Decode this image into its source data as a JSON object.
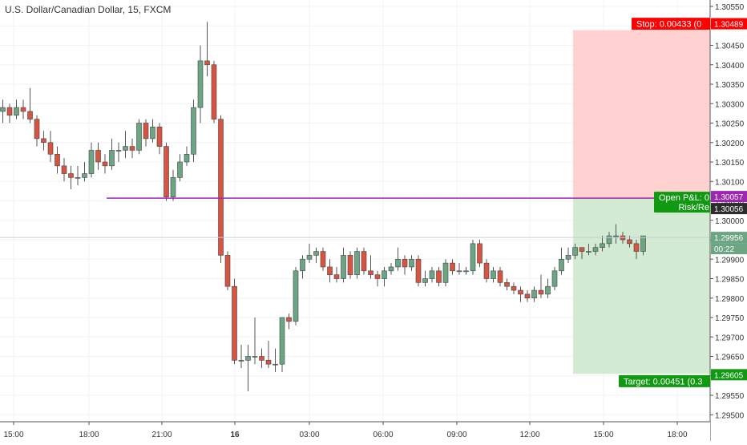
{
  "symbol": {
    "title": "U.S. Dollar/Canadian Dollar, 15, FXCM"
  },
  "chart_data": {
    "type": "candlestick",
    "time_axis_labels": [
      "15:00",
      "18:00",
      "21:00",
      "16",
      "03:00",
      "06:00",
      "09:00",
      "12:00",
      "15:00",
      "18:00"
    ],
    "price_axis_labels": [
      "1.30550",
      "1.30500",
      "1.30450",
      "1.30400",
      "1.30350",
      "1.30300",
      "1.30250",
      "1.30200",
      "1.30150",
      "1.30100",
      "1.30050",
      "1.30000",
      "1.29950",
      "1.29900",
      "1.29850",
      "1.29800",
      "1.29750",
      "1.29700",
      "1.29650",
      "1.29600",
      "1.29550",
      "1.29500"
    ],
    "ylim": [
      1.29497,
      1.30556
    ],
    "grid": true,
    "candles": [
      [
        1.3028,
        1.3029,
        1.3031,
        1.3025
      ],
      [
        1.3029,
        1.3027,
        1.303,
        1.3025
      ],
      [
        1.3027,
        1.3029,
        1.3031,
        1.3026
      ],
      [
        1.3029,
        1.3028,
        1.3031,
        1.3026
      ],
      [
        1.3028,
        1.3026,
        1.3034,
        1.3025
      ],
      [
        1.3026,
        1.3021,
        1.3027,
        1.3019
      ],
      [
        1.3021,
        1.302,
        1.3023,
        1.3018
      ],
      [
        1.302,
        1.3017,
        1.3023,
        1.3015
      ],
      [
        1.3017,
        1.3014,
        1.3019,
        1.3012
      ],
      [
        1.3014,
        1.3012,
        1.3016,
        1.301
      ],
      [
        1.3012,
        1.3011,
        1.3014,
        1.3008
      ],
      [
        1.3011,
        1.3011,
        1.3014,
        1.3009
      ],
      [
        1.3011,
        1.3012,
        1.3015,
        1.301
      ],
      [
        1.3012,
        1.3018,
        1.302,
        1.3011
      ],
      [
        1.3018,
        1.3015,
        1.302,
        1.3013
      ],
      [
        1.3015,
        1.3014,
        1.3017,
        1.3012
      ],
      [
        1.3014,
        1.3018,
        1.3021,
        1.3013
      ],
      [
        1.3018,
        1.3018,
        1.302,
        1.3015
      ],
      [
        1.3018,
        1.3019,
        1.3023,
        1.3016
      ],
      [
        1.3019,
        1.3018,
        1.3021,
        1.3016
      ],
      [
        1.3018,
        1.3025,
        1.3026,
        1.3017
      ],
      [
        1.3025,
        1.3021,
        1.3026,
        1.3019
      ],
      [
        1.3021,
        1.3024,
        1.3026,
        1.302
      ],
      [
        1.3024,
        1.3019,
        1.3025,
        1.3017
      ],
      [
        1.3019,
        1.3006,
        1.302,
        1.3005
      ],
      [
        1.3006,
        1.3011,
        1.3013,
        1.3005
      ],
      [
        1.3011,
        1.3015,
        1.3017,
        1.301
      ],
      [
        1.3015,
        1.3017,
        1.3019,
        1.3014
      ],
      [
        1.3017,
        1.3029,
        1.3031,
        1.3015
      ],
      [
        1.3029,
        1.3041,
        1.3045,
        1.3025
      ],
      [
        1.3041,
        1.304,
        1.3051,
        1.3037
      ],
      [
        1.304,
        1.3026,
        1.3041,
        1.3025
      ],
      [
        1.3026,
        1.2991,
        1.3027,
        1.2989
      ],
      [
        1.2991,
        1.2983,
        1.2992,
        1.2982
      ],
      [
        1.2983,
        1.2964,
        1.2985,
        1.2963
      ],
      [
        1.2964,
        1.2964,
        1.2968,
        1.2962
      ],
      [
        1.2964,
        1.2965,
        1.2968,
        1.2956
      ],
      [
        1.2965,
        1.2965,
        1.2975,
        1.2963
      ],
      [
        1.2965,
        1.2964,
        1.2967,
        1.2962
      ],
      [
        1.2964,
        1.2963,
        1.2969,
        1.2962
      ],
      [
        1.2963,
        1.2963,
        1.2967,
        1.2961
      ],
      [
        1.2963,
        1.2975,
        1.2975,
        1.2961
      ],
      [
        1.2975,
        1.2974,
        1.2976,
        1.2972
      ],
      [
        1.2974,
        1.2987,
        1.2988,
        1.2973
      ],
      [
        1.2987,
        1.299,
        1.2991,
        1.2985
      ],
      [
        1.299,
        1.2991,
        1.2994,
        1.2989
      ],
      [
        1.2991,
        1.2992,
        1.2993,
        1.2989
      ],
      [
        1.2992,
        1.2988,
        1.2993,
        1.2987
      ],
      [
        1.2988,
        1.2986,
        1.299,
        1.2984
      ],
      [
        1.2986,
        1.2985,
        1.2988,
        1.2984
      ],
      [
        1.2985,
        1.2991,
        1.2993,
        1.2984
      ],
      [
        1.2991,
        1.2986,
        1.2992,
        1.2985
      ],
      [
        1.2986,
        1.2992,
        1.2993,
        1.2985
      ],
      [
        1.2992,
        1.2987,
        1.2993,
        1.2986
      ],
      [
        1.2987,
        1.2986,
        1.2991,
        1.2985
      ],
      [
        1.2986,
        1.2985,
        1.2987,
        1.2983
      ],
      [
        1.2985,
        1.2987,
        1.2988,
        1.2983
      ],
      [
        1.2987,
        1.2988,
        1.2989,
        1.2986
      ],
      [
        1.2988,
        1.299,
        1.2993,
        1.2987
      ],
      [
        1.299,
        1.2988,
        1.2991,
        1.2986
      ],
      [
        1.2988,
        1.299,
        1.2991,
        1.2987
      ],
      [
        1.299,
        1.2984,
        1.2991,
        1.2983
      ],
      [
        1.2984,
        1.2985,
        1.2987,
        1.2983
      ],
      [
        1.2985,
        1.2987,
        1.2988,
        1.2984
      ],
      [
        1.2987,
        1.2984,
        1.2988,
        1.2983
      ],
      [
        1.2984,
        1.2989,
        1.299,
        1.2983
      ],
      [
        1.2989,
        1.2987,
        1.299,
        1.2986
      ],
      [
        1.2987,
        1.2987,
        1.2989,
        1.2986
      ],
      [
        1.2987,
        1.2987,
        1.2988,
        1.2986
      ],
      [
        1.2987,
        1.2994,
        1.2995,
        1.2986
      ],
      [
        1.2994,
        1.2989,
        1.2995,
        1.2988
      ],
      [
        1.2989,
        1.2985,
        1.299,
        1.2984
      ],
      [
        1.2985,
        1.2987,
        1.2988,
        1.2984
      ],
      [
        1.2987,
        1.2984,
        1.2988,
        1.2983
      ],
      [
        1.2984,
        1.2983,
        1.2985,
        1.2982
      ],
      [
        1.2983,
        1.2982,
        1.2984,
        1.2981
      ],
      [
        1.2982,
        1.2981,
        1.2983,
        1.2979
      ],
      [
        1.2981,
        1.298,
        1.2982,
        1.2979
      ],
      [
        1.298,
        1.2982,
        1.2983,
        1.2979
      ],
      [
        1.2982,
        1.2981,
        1.2986,
        1.298
      ],
      [
        1.2981,
        1.2983,
        1.2985,
        1.298
      ],
      [
        1.2983,
        1.2987,
        1.2988,
        1.2982
      ],
      [
        1.2987,
        1.299,
        1.2993,
        1.2986
      ],
      [
        1.299,
        1.2991,
        1.2993,
        1.2989
      ],
      [
        1.2991,
        1.2993,
        1.2994,
        1.299
      ],
      [
        1.2993,
        1.2992,
        1.2993,
        1.299
      ],
      [
        1.2992,
        1.2992,
        1.2994,
        1.2991
      ],
      [
        1.2992,
        1.2993,
        1.2994,
        1.2991
      ],
      [
        1.2993,
        1.2994,
        1.2996,
        1.2992
      ],
      [
        1.2994,
        1.2996,
        1.2997,
        1.2993
      ],
      [
        1.2996,
        1.2996,
        1.2999,
        1.2994
      ],
      [
        1.2996,
        1.2995,
        1.2997,
        1.2994
      ],
      [
        1.2995,
        1.2994,
        1.2996,
        1.2993
      ],
      [
        1.2994,
        1.2992,
        1.2995,
        1.299
      ],
      [
        1.2992,
        1.2996,
        1.2996,
        1.2991
      ]
    ],
    "position": {
      "entry_price": "1.30057",
      "stop_price": "1.30489",
      "target_price": "1.29605",
      "stop_label": "Stop: 0.00433 (0",
      "target_label": "Target: 0.00451 (0.3",
      "open_pnl_label": "Open P&L: 0",
      "risk_reward_label": "Risk/Re"
    },
    "current_price": "1.29956",
    "countdown": "00:22",
    "last_bar_price": "1.30056",
    "colors": {
      "up_body": "#6ba583",
      "down_body": "#d75442",
      "wick": "#555555",
      "stop_zone": "#ffcccc",
      "target_zone": "#cde9cd",
      "entry_line": "#9c27b0",
      "stop_label": "#ff0000",
      "target_label": "#119911",
      "current_price_tag": "#6ba583",
      "last_bar_tag": "#2c2c2c"
    }
  }
}
